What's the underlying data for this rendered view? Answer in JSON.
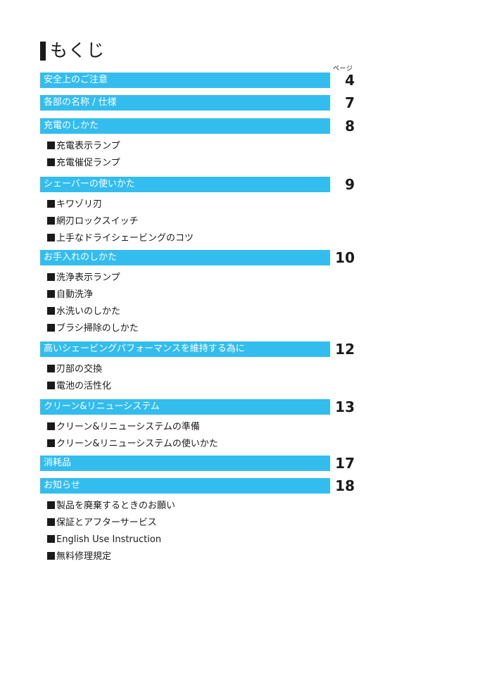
{
  "title": "もくじ",
  "page_label": "ページ",
  "sections": [
    {
      "label": "安全上のご注意",
      "page": "4",
      "items": []
    },
    {
      "label": "各部の名称 / 仕様",
      "page": "7",
      "items": []
    },
    {
      "label": "充電のしかた",
      "page": "8",
      "items": [
        "充電表示ランプ",
        "充電催促ランプ"
      ]
    },
    {
      "label": "シェーバーの使いかた",
      "page": "9",
      "items": [
        "キワゾリ刃",
        "網刃ロックスイッチ",
        "上手なドライシェービングのコツ"
      ]
    },
    {
      "label": "お手入れのしかた",
      "page": "10",
      "items": [
        "洗浄表示ランプ",
        "自動洗浄",
        "水洗いのしかた",
        "ブラシ掃除のしかた"
      ]
    },
    {
      "label": "高いシェービングパフォーマンスを維持する為に",
      "page": "12",
      "items": [
        "刃部の交換",
        "電池の活性化"
      ]
    },
    {
      "label": "クリーン&リニューシステム",
      "page": "13",
      "items": [
        "クリーン&リニューシステムの準備",
        "クリーン&リニューシステムの使いかた"
      ]
    },
    {
      "label": "消耗品",
      "page": "17",
      "items": []
    },
    {
      "label": "お知らせ",
      "page": "18",
      "items": [
        "製品を廃棄するときのお願い",
        "保証とアフターサービス",
        "English Use Instruction",
        "無料修理規定"
      ]
    }
  ]
}
